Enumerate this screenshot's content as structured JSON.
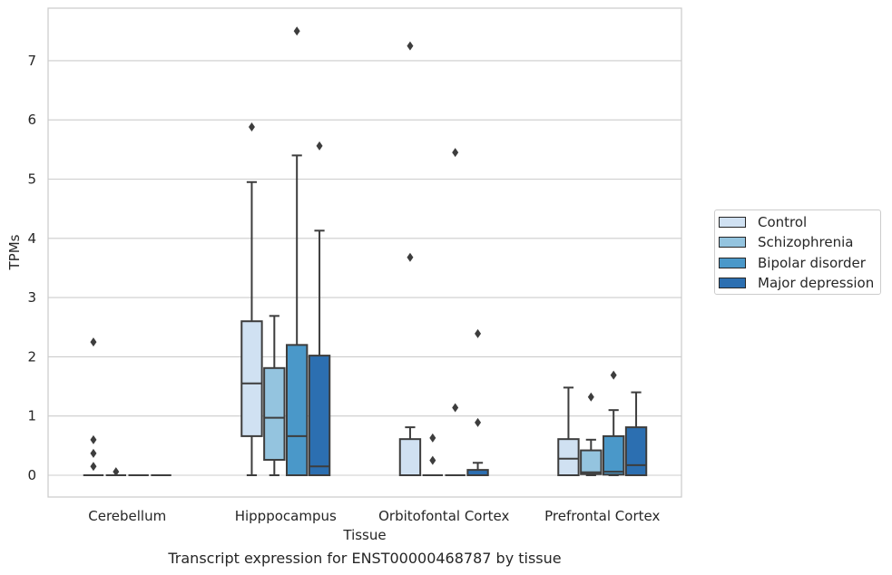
{
  "caption": "Transcript expression for ENST00000468787 by tissue",
  "chart_data": {
    "type": "box",
    "xlabel": "Tissue",
    "ylabel": "TPMs",
    "ylim": [
      -0.37,
      7.9
    ],
    "yticks": [
      0,
      1,
      2,
      3,
      4,
      5,
      6,
      7
    ],
    "grid": "horizontal",
    "legend_position": "right",
    "categories": [
      "Cerebellum",
      "Hipppocampus",
      "Orbitofontal Cortex",
      "Prefrontal Cortex"
    ],
    "series": [
      {
        "name": "Control",
        "color": "#d0e1f2",
        "boxes": [
          {
            "whislo": 0,
            "q1": 0,
            "med": 0,
            "q3": 0,
            "whishi": 0,
            "fliers": [
              2.25,
              0.6,
              0.37,
              0.15
            ]
          },
          {
            "whislo": 0,
            "q1": 0.66,
            "med": 1.55,
            "q3": 2.6,
            "whishi": 4.95,
            "fliers": [
              5.88
            ]
          },
          {
            "whislo": 0,
            "q1": 0,
            "med": 0,
            "q3": 0.61,
            "whishi": 0.81,
            "fliers": [
              3.68,
              7.25
            ]
          },
          {
            "whislo": 0,
            "q1": 0,
            "med": 0.28,
            "q3": 0.61,
            "whishi": 1.48,
            "fliers": []
          }
        ]
      },
      {
        "name": "Schizophrenia",
        "color": "#94c4df",
        "boxes": [
          {
            "whislo": 0,
            "q1": 0,
            "med": 0,
            "q3": 0,
            "whishi": 0,
            "fliers": [
              0.06
            ]
          },
          {
            "whislo": 0,
            "q1": 0.26,
            "med": 0.97,
            "q3": 1.81,
            "whishi": 2.69,
            "fliers": []
          },
          {
            "whislo": 0,
            "q1": 0,
            "med": 0,
            "q3": 0,
            "whishi": 0,
            "fliers": [
              0.63,
              0.25
            ]
          },
          {
            "whislo": 0,
            "q1": 0.02,
            "med": 0.05,
            "q3": 0.42,
            "whishi": 0.6,
            "fliers": [
              1.32
            ]
          }
        ]
      },
      {
        "name": "Bipolar disorder",
        "color": "#4a98c9",
        "boxes": [
          {
            "whislo": 0,
            "q1": 0,
            "med": 0,
            "q3": 0,
            "whishi": 0,
            "fliers": []
          },
          {
            "whislo": 0,
            "q1": 0,
            "med": 0.66,
            "q3": 2.2,
            "whishi": 5.4,
            "fliers": [
              7.5
            ]
          },
          {
            "whislo": 0,
            "q1": 0,
            "med": 0,
            "q3": 0,
            "whishi": 0,
            "fliers": [
              5.45,
              1.14
            ]
          },
          {
            "whislo": 0,
            "q1": 0.01,
            "med": 0.06,
            "q3": 0.66,
            "whishi": 1.1,
            "fliers": [
              1.69
            ]
          }
        ]
      },
      {
        "name": "Major depression",
        "color": "#2c6fb1",
        "boxes": [
          {
            "whislo": 0,
            "q1": 0,
            "med": 0,
            "q3": 0,
            "whishi": 0,
            "fliers": []
          },
          {
            "whislo": 0,
            "q1": 0,
            "med": 0.15,
            "q3": 2.02,
            "whishi": 4.13,
            "fliers": [
              5.56
            ]
          },
          {
            "whislo": 0,
            "q1": 0,
            "med": 0,
            "q3": 0.09,
            "whishi": 0.21,
            "fliers": [
              2.39,
              0.89
            ]
          },
          {
            "whislo": 0,
            "q1": 0,
            "med": 0.17,
            "q3": 0.81,
            "whishi": 1.4,
            "fliers": []
          }
        ]
      }
    ]
  }
}
